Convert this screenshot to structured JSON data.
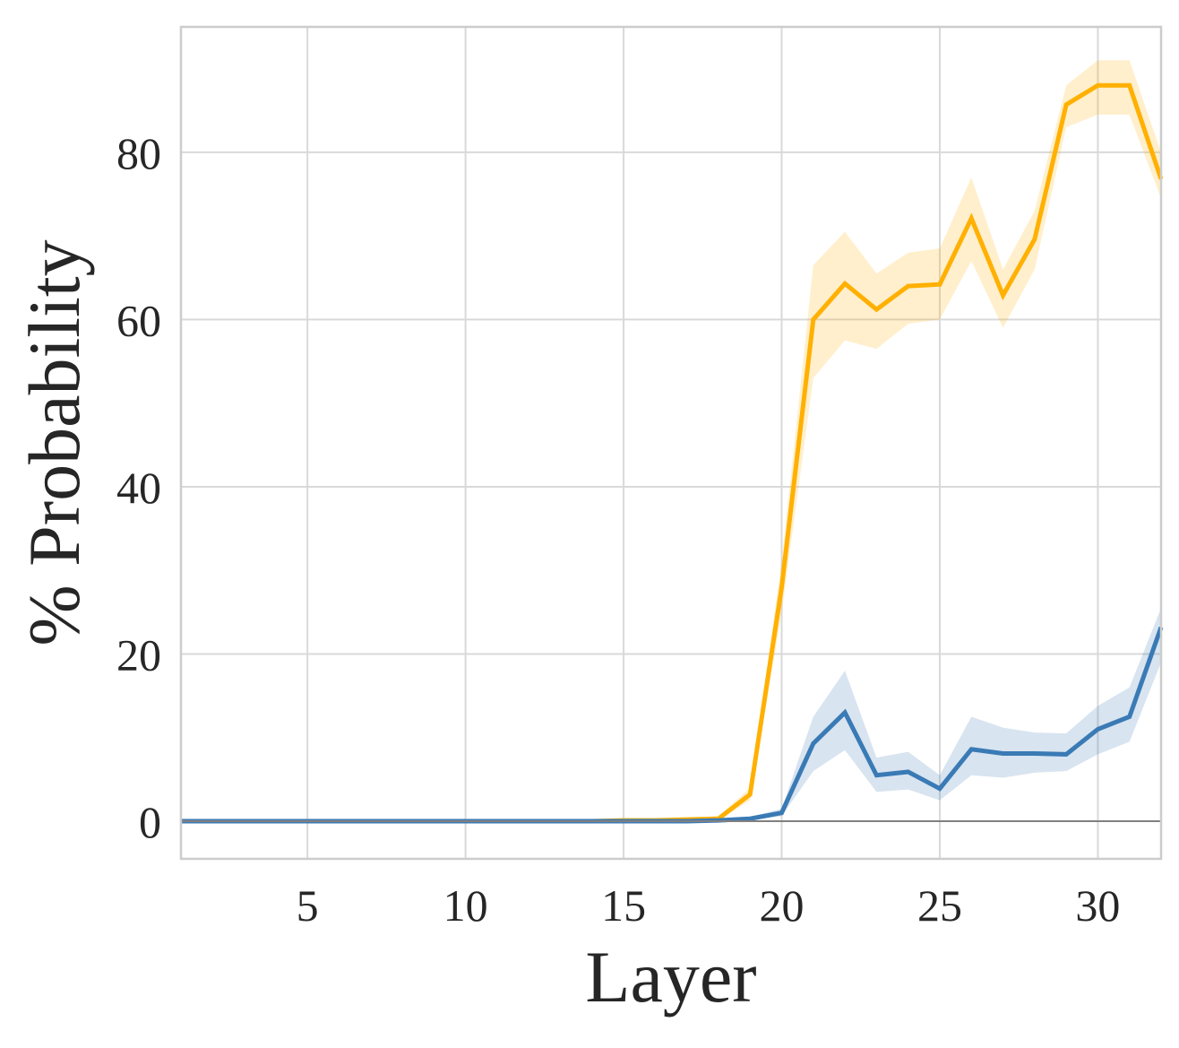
{
  "chart_data": {
    "type": "line",
    "title": "",
    "xlabel": "Layer",
    "ylabel": "% Probability",
    "xlim": [
      1,
      32
    ],
    "ylim": [
      -4.5,
      95
    ],
    "xticks": [
      5,
      10,
      15,
      20,
      25,
      30
    ],
    "yticks": [
      0,
      20,
      40,
      60,
      80
    ],
    "grid": true,
    "reference_line": 0,
    "x": [
      1,
      2,
      3,
      4,
      5,
      6,
      7,
      8,
      9,
      10,
      11,
      12,
      13,
      14,
      15,
      16,
      17,
      18,
      19,
      20,
      21,
      22,
      23,
      24,
      25,
      26,
      27,
      28,
      29,
      30,
      31,
      32
    ],
    "series": [
      {
        "color": "#ffb000",
        "values": [
          0,
          0,
          0,
          0,
          0,
          0,
          0,
          0,
          0,
          0,
          0,
          0,
          0,
          0,
          0.1,
          0.1,
          0.2,
          0.3,
          3.2,
          28,
          60,
          64.3,
          61.2,
          64,
          64.2,
          72.1,
          62.9,
          69.6,
          85.7,
          88,
          88,
          76.8
        ],
        "lower": [
          0,
          0,
          0,
          0,
          0,
          0,
          0,
          0,
          0,
          0,
          0,
          0,
          0,
          0,
          0,
          0,
          0,
          0.1,
          2.5,
          25,
          53,
          57.5,
          56.5,
          59.5,
          60,
          67,
          59,
          66,
          83,
          84.5,
          84.5,
          74.5
        ],
        "upper": [
          0,
          0,
          0,
          0,
          0,
          0,
          0,
          0,
          0,
          0,
          0,
          0,
          0,
          0,
          0.2,
          0.3,
          0.4,
          0.6,
          4,
          31,
          66.5,
          70.5,
          65.5,
          68,
          68.5,
          77,
          66,
          73,
          88,
          91,
          91,
          80
        ]
      },
      {
        "color": "#3a7ab5",
        "values": [
          0,
          0,
          0,
          0,
          0,
          0,
          0,
          0,
          0,
          0,
          0,
          0,
          0,
          0,
          0,
          0,
          0,
          0.1,
          0.3,
          1,
          9.3,
          13,
          5.5,
          5.9,
          3.9,
          8.6,
          8.1,
          8.1,
          8.0,
          11,
          12.5,
          23.2
        ],
        "lower": [
          0,
          0,
          0,
          0,
          0,
          0,
          0,
          0,
          0,
          0,
          0,
          0,
          0,
          0,
          0,
          0,
          0,
          0,
          0.1,
          0.6,
          6,
          8.5,
          3.5,
          3.8,
          2.5,
          5.5,
          5.2,
          5.8,
          6,
          8,
          9.5,
          19
        ],
        "upper": [
          0,
          0,
          0,
          0,
          0,
          0,
          0,
          0,
          0,
          0,
          0,
          0,
          0,
          0,
          0,
          0,
          0,
          0.2,
          0.5,
          1.5,
          12.5,
          18,
          7.6,
          8.3,
          5.5,
          12.5,
          11.2,
          10.6,
          10.5,
          13.8,
          16,
          25.5
        ]
      }
    ]
  }
}
